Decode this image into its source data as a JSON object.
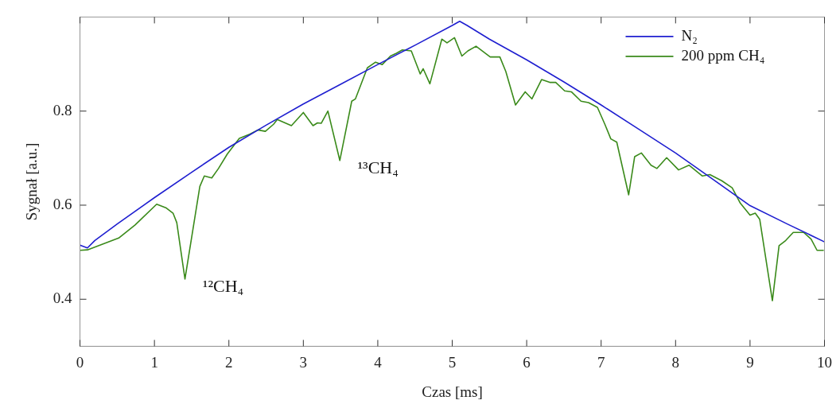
{
  "chart_data": {
    "type": "line",
    "xlabel": "Czas [ms]",
    "ylabel": "Sygnał [a.u.]",
    "xlim": [
      0,
      10
    ],
    "xticks": [
      0,
      1,
      2,
      3,
      4,
      5,
      6,
      7,
      8,
      9,
      10
    ],
    "ylim": [
      0.3,
      1.0
    ],
    "yticks": [
      0.4,
      0.6,
      0.8
    ],
    "grid": false,
    "legend": "top right",
    "marker": "none",
    "line_style": "solid",
    "annotations": [
      {
        "text": "¹²CH₄",
        "x": 1.41,
        "y": 0.443
      },
      {
        "text": "¹³CH₄",
        "x": 3.49,
        "y": 0.695
      }
    ],
    "series": [
      {
        "name": "N₂",
        "color": "#1f1fd0",
        "x": [
          0,
          0.1,
          0.2,
          0.5,
          1,
          1.5,
          2,
          2.5,
          3,
          3.5,
          4,
          4.5,
          5,
          5.1,
          5.2,
          5.5,
          6,
          6.5,
          7,
          7.5,
          8,
          8.5,
          9,
          9.5,
          10
        ],
        "values": [
          0.515,
          0.509,
          0.525,
          0.56,
          0.616,
          0.67,
          0.723,
          0.77,
          0.815,
          0.857,
          0.899,
          0.94,
          0.982,
          0.991,
          0.982,
          0.953,
          0.909,
          0.862,
          0.813,
          0.762,
          0.711,
          0.655,
          0.599,
          0.56,
          0.522
        ]
      },
      {
        "name": "200 ppm CH₄",
        "color": "#3a8a1a",
        "x": [
          0,
          0.1,
          0.52,
          0.74,
          1.03,
          1.16,
          1.25,
          1.3,
          1.41,
          1.61,
          1.67,
          1.77,
          1.86,
          1.98,
          2.14,
          2.28,
          2.39,
          2.49,
          2.6,
          2.65,
          2.84,
          3.0,
          3.13,
          3.19,
          3.24,
          3.33,
          3.49,
          3.65,
          3.7,
          3.86,
          3.97,
          4.06,
          4.17,
          4.25,
          4.33,
          4.45,
          4.57,
          4.61,
          4.7,
          4.86,
          4.93,
          5.03,
          5.13,
          5.21,
          5.32,
          5.51,
          5.64,
          5.72,
          5.85,
          5.98,
          6.07,
          6.2,
          6.31,
          6.39,
          6.51,
          6.6,
          6.73,
          6.83,
          6.95,
          7.05,
          7.13,
          7.21,
          7.37,
          7.45,
          7.54,
          7.67,
          7.75,
          7.88,
          8.04,
          8.18,
          8.36,
          8.46,
          8.62,
          8.76,
          8.87,
          9.0,
          9.07,
          9.13,
          9.3,
          9.39,
          9.48,
          9.58,
          9.72,
          9.82,
          9.9,
          9.99
        ],
        "values": [
          0.504,
          0.505,
          0.53,
          0.558,
          0.602,
          0.594,
          0.583,
          0.563,
          0.443,
          0.64,
          0.662,
          0.658,
          0.678,
          0.709,
          0.742,
          0.751,
          0.76,
          0.757,
          0.772,
          0.782,
          0.769,
          0.797,
          0.769,
          0.775,
          0.774,
          0.8,
          0.695,
          0.821,
          0.826,
          0.892,
          0.904,
          0.899,
          0.917,
          0.923,
          0.93,
          0.928,
          0.879,
          0.89,
          0.858,
          0.953,
          0.945,
          0.956,
          0.917,
          0.928,
          0.938,
          0.915,
          0.915,
          0.884,
          0.813,
          0.841,
          0.826,
          0.867,
          0.861,
          0.861,
          0.843,
          0.841,
          0.821,
          0.818,
          0.808,
          0.772,
          0.741,
          0.734,
          0.622,
          0.703,
          0.711,
          0.685,
          0.678,
          0.701,
          0.675,
          0.685,
          0.662,
          0.665,
          0.652,
          0.637,
          0.604,
          0.579,
          0.583,
          0.57,
          0.397,
          0.514,
          0.525,
          0.542,
          0.542,
          0.528,
          0.504,
          0.504
        ]
      }
    ]
  }
}
